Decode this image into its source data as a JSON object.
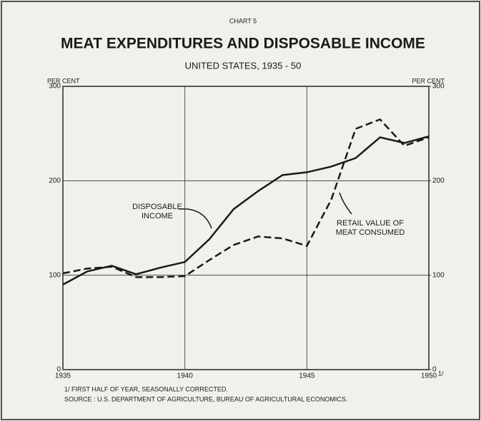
{
  "chart_data": {
    "type": "line",
    "header": "CHART 5",
    "title": "MEAT EXPENDITURES AND DISPOSABLE INCOME",
    "subtitle": "UNITED STATES, 1935 - 50",
    "ylabel": "PER CENT",
    "y2label": "PER CENT",
    "x": [
      1935,
      1936,
      1937,
      1938,
      1939,
      1940,
      1941,
      1942,
      1943,
      1944,
      1945,
      1946,
      1947,
      1948,
      1949,
      1950
    ],
    "xlim": [
      1935,
      1950
    ],
    "xticks": [
      1935,
      1940,
      1945,
      1950
    ],
    "x_footnote_mark": "1/",
    "ylim": [
      0,
      300
    ],
    "yticks": [
      0,
      100,
      200,
      300
    ],
    "y2lim": [
      0,
      300
    ],
    "y2ticks": [
      0,
      100,
      200,
      300
    ],
    "grid": true,
    "series": [
      {
        "label_lines": [
          "DISPOSABLE",
          "INCOME"
        ],
        "color": "#1a1a1a",
        "style": "solid",
        "values": [
          90,
          104,
          110,
          101,
          108,
          114,
          138,
          170,
          189,
          206,
          209,
          215,
          224,
          246,
          240,
          247
        ]
      },
      {
        "label_lines": [
          "RETAIL VALUE OF",
          "MEAT CONSUMED"
        ],
        "color": "#1a1a1a",
        "style": "dashed",
        "axis": "y2",
        "values": [
          102,
          107,
          109,
          98,
          98,
          99,
          116,
          132,
          141,
          139,
          131,
          180,
          255,
          265,
          237,
          246
        ]
      }
    ],
    "footnotes": [
      "1/ FIRST HALF OF YEAR, SEASONALLY CORRECTED.",
      "SOURCE : U.S. DEPARTMENT OF AGRICULTURE, BUREAU OF AGRICULTURAL ECONOMICS."
    ]
  }
}
